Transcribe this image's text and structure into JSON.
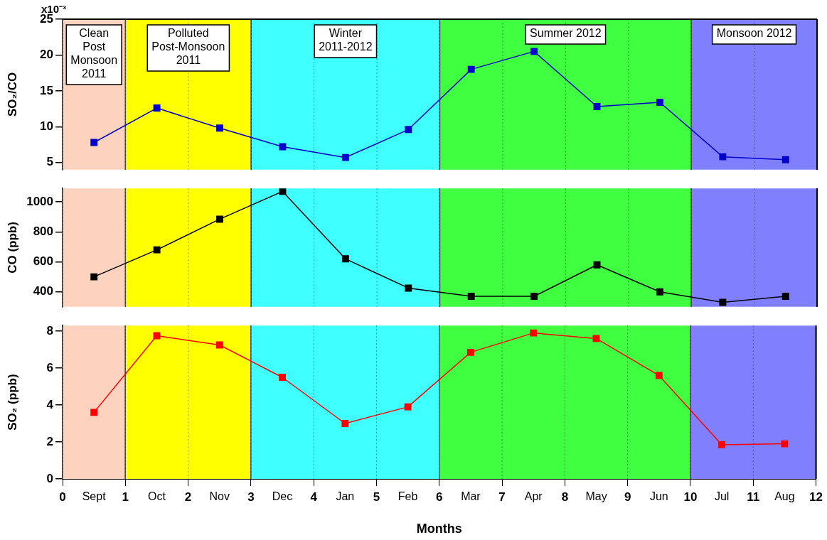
{
  "chart_data": [
    {
      "type": "line",
      "ylabel": "SO₂/CO",
      "tick_labels": "y",
      "annotations": [
        "x10⁻³"
      ],
      "x": [
        0.5,
        1.5,
        2.5,
        3.5,
        4.5,
        5.5,
        6.5,
        7.5,
        8.5,
        9.5,
        10.5,
        11.5
      ],
      "xlim": [
        0,
        12
      ],
      "xticks": [
        0,
        1,
        2,
        3,
        4,
        5,
        6,
        7,
        8,
        9,
        10,
        11,
        12
      ],
      "ylim": [
        4,
        25
      ],
      "yticks": [
        5,
        10,
        15,
        20,
        25
      ],
      "series": [
        {
          "color": "#0000cc",
          "values": [
            7.8,
            12.6,
            9.8,
            7.2,
            5.7,
            9.6,
            18.0,
            20.5,
            12.8,
            13.4,
            5.8,
            5.4
          ]
        }
      ],
      "bands": [
        {
          "axis": "x",
          "from": 0,
          "to": 1,
          "label": "Clean Post Monsoon 2011",
          "color": "#fdd3c0"
        },
        {
          "axis": "x",
          "from": 1,
          "to": 3,
          "label": "Polluted Post-Monsoon 2011",
          "color": "#ffff00"
        },
        {
          "axis": "x",
          "from": 3,
          "to": 6,
          "label": "Winter 2011-2012",
          "color": "#40ffff"
        },
        {
          "axis": "x",
          "from": 6,
          "to": 10,
          "label": "Summer 2012",
          "color": "#40ff40"
        },
        {
          "axis": "x",
          "from": 10,
          "to": 12,
          "label": "Monsoon 2012",
          "color": "#8080ff"
        }
      ],
      "grid": "x",
      "marker": "square",
      "line_style": "solid"
    },
    {
      "type": "line",
      "ylabel": "CO (ppb)",
      "tick_labels": "y",
      "x": [
        0.5,
        1.5,
        2.5,
        3.5,
        4.5,
        5.5,
        6.5,
        7.5,
        8.5,
        9.5,
        10.5,
        11.5
      ],
      "xlim": [
        0,
        12
      ],
      "xticks": [
        0,
        1,
        2,
        3,
        4,
        5,
        6,
        7,
        8,
        9,
        10,
        11,
        12
      ],
      "ylim": [
        300,
        1090
      ],
      "yticks": [
        400,
        600,
        800,
        1000
      ],
      "series": [
        {
          "color": "#000000",
          "values": [
            500,
            680,
            885,
            1070,
            620,
            425,
            370,
            370,
            580,
            400,
            330,
            370
          ]
        }
      ],
      "bands": [
        {
          "axis": "x",
          "from": 0,
          "to": 1,
          "color": "#fdd3c0"
        },
        {
          "axis": "x",
          "from": 1,
          "to": 3,
          "color": "#ffff00"
        },
        {
          "axis": "x",
          "from": 3,
          "to": 6,
          "color": "#40ffff"
        },
        {
          "axis": "x",
          "from": 6,
          "to": 10,
          "color": "#40ff40"
        },
        {
          "axis": "x",
          "from": 10,
          "to": 12,
          "color": "#8080ff"
        }
      ],
      "grid": "x",
      "marker": "square",
      "line_style": "solid"
    },
    {
      "type": "line",
      "ylabel": "SO₂ (ppb)",
      "xlabel": "Months",
      "x": [
        0.5,
        1.5,
        2.5,
        3.5,
        4.5,
        5.5,
        6.5,
        7.5,
        8.5,
        9.5,
        10.5,
        11.5
      ],
      "xlim": [
        0,
        12
      ],
      "xticks": [
        0,
        {
          "value": 0.5,
          "label": "Sept"
        },
        1,
        {
          "value": 1.5,
          "label": "Oct"
        },
        2,
        {
          "value": 2.5,
          "label": "Nov"
        },
        3,
        {
          "value": 3.5,
          "label": "Dec"
        },
        4,
        {
          "value": 4.5,
          "label": "Jan"
        },
        5,
        {
          "value": 5.5,
          "label": "Feb"
        },
        6,
        {
          "value": 6.5,
          "label": "Mar"
        },
        7,
        {
          "value": 7.5,
          "label": "Apr"
        },
        8,
        {
          "value": 8.5,
          "label": "May"
        },
        9,
        {
          "value": 9.5,
          "label": "Jun"
        },
        10,
        {
          "value": 10.5,
          "label": "Jul"
        },
        11,
        {
          "value": 11.5,
          "label": "Aug"
        },
        12
      ],
      "ylim": [
        0,
        8.3
      ],
      "yticks": [
        0,
        2,
        4,
        6,
        8
      ],
      "series": [
        {
          "color": "#ff0000",
          "values": [
            3.6,
            7.75,
            7.25,
            5.5,
            3.0,
            3.9,
            6.85,
            7.9,
            7.6,
            5.6,
            1.85,
            1.9
          ]
        }
      ],
      "bands": [
        {
          "axis": "x",
          "from": 0,
          "to": 1,
          "color": "#fdd3c0"
        },
        {
          "axis": "x",
          "from": 1,
          "to": 3,
          "color": "#ffff00"
        },
        {
          "axis": "x",
          "from": 3,
          "to": 6,
          "color": "#40ffff"
        },
        {
          "axis": "x",
          "from": 6,
          "to": 10,
          "color": "#40ff40"
        },
        {
          "axis": "x",
          "from": 10,
          "to": 12,
          "color": "#8080ff"
        }
      ],
      "grid": "x",
      "marker": "square",
      "line_style": "solid"
    }
  ]
}
